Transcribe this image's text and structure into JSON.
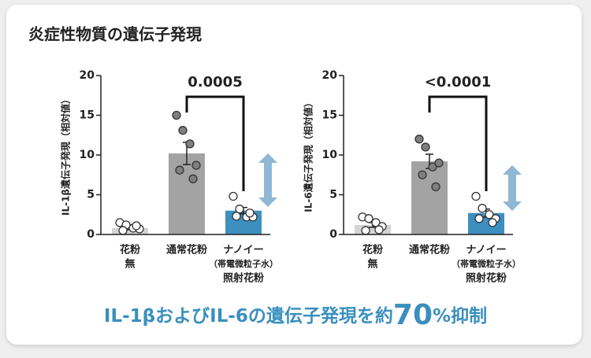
{
  "title": "炎症性物質の遺伝子発現",
  "chart_data": [
    {
      "type": "bar",
      "ylabel": "IL-1β遺伝子発現（相対値）",
      "categories": [
        [
          "花粉",
          "無"
        ],
        [
          "通常花粉"
        ],
        [
          "ナノイー",
          "（帯電微粒子水）",
          "照射花粉"
        ]
      ],
      "values": [
        0.8,
        10.2,
        3.0
      ],
      "errors": [
        0.2,
        1.4,
        0.4
      ],
      "colors": [
        "#d4d4d4",
        "#a3a3a3",
        "#3d8fc0"
      ],
      "points": [
        [
          1.5,
          1.2,
          0.8,
          0.7,
          0.5,
          1.1
        ],
        [
          15.0,
          13.1,
          11.4,
          8.7,
          8.1,
          7.0
        ],
        [
          4.8,
          3.2,
          2.2,
          2.2,
          2.3,
          2.7
        ]
      ],
      "point_colors": [
        "#ffffff",
        "#7f7f7f",
        "#ffffff"
      ],
      "ylim": [
        0,
        20
      ],
      "yticks": [
        0,
        5,
        10,
        15,
        20
      ],
      "significance": "0.0005"
    },
    {
      "type": "bar",
      "ylabel": "IL-6遺伝子発現（相対値）",
      "categories": [
        [
          "花粉",
          "無"
        ],
        [
          "通常花粉"
        ],
        [
          "ナノイー",
          "（帯電微粒子水）",
          "照射花粉"
        ]
      ],
      "values": [
        1.2,
        9.2,
        2.7
      ],
      "errors": [
        0.3,
        0.9,
        0.5
      ],
      "colors": [
        "#d4d4d4",
        "#a3a3a3",
        "#3d8fc0"
      ],
      "points": [
        [
          2.2,
          2.0,
          1.5,
          1.0,
          0.5,
          0.6
        ],
        [
          12.0,
          11.0,
          8.5,
          9.0,
          7.5,
          6.0
        ],
        [
          4.8,
          3.3,
          2.5,
          2.0,
          2.0,
          1.5
        ]
      ],
      "point_colors": [
        "#ffffff",
        "#7f7f7f",
        "#ffffff"
      ],
      "ylim": [
        0,
        20
      ],
      "yticks": [
        0,
        5,
        10,
        15,
        20
      ],
      "significance": "<0.0001"
    }
  ],
  "footer": [
    "IL-1βおよびIL-6の遺伝子発現を約",
    "70",
    "%抑制"
  ]
}
